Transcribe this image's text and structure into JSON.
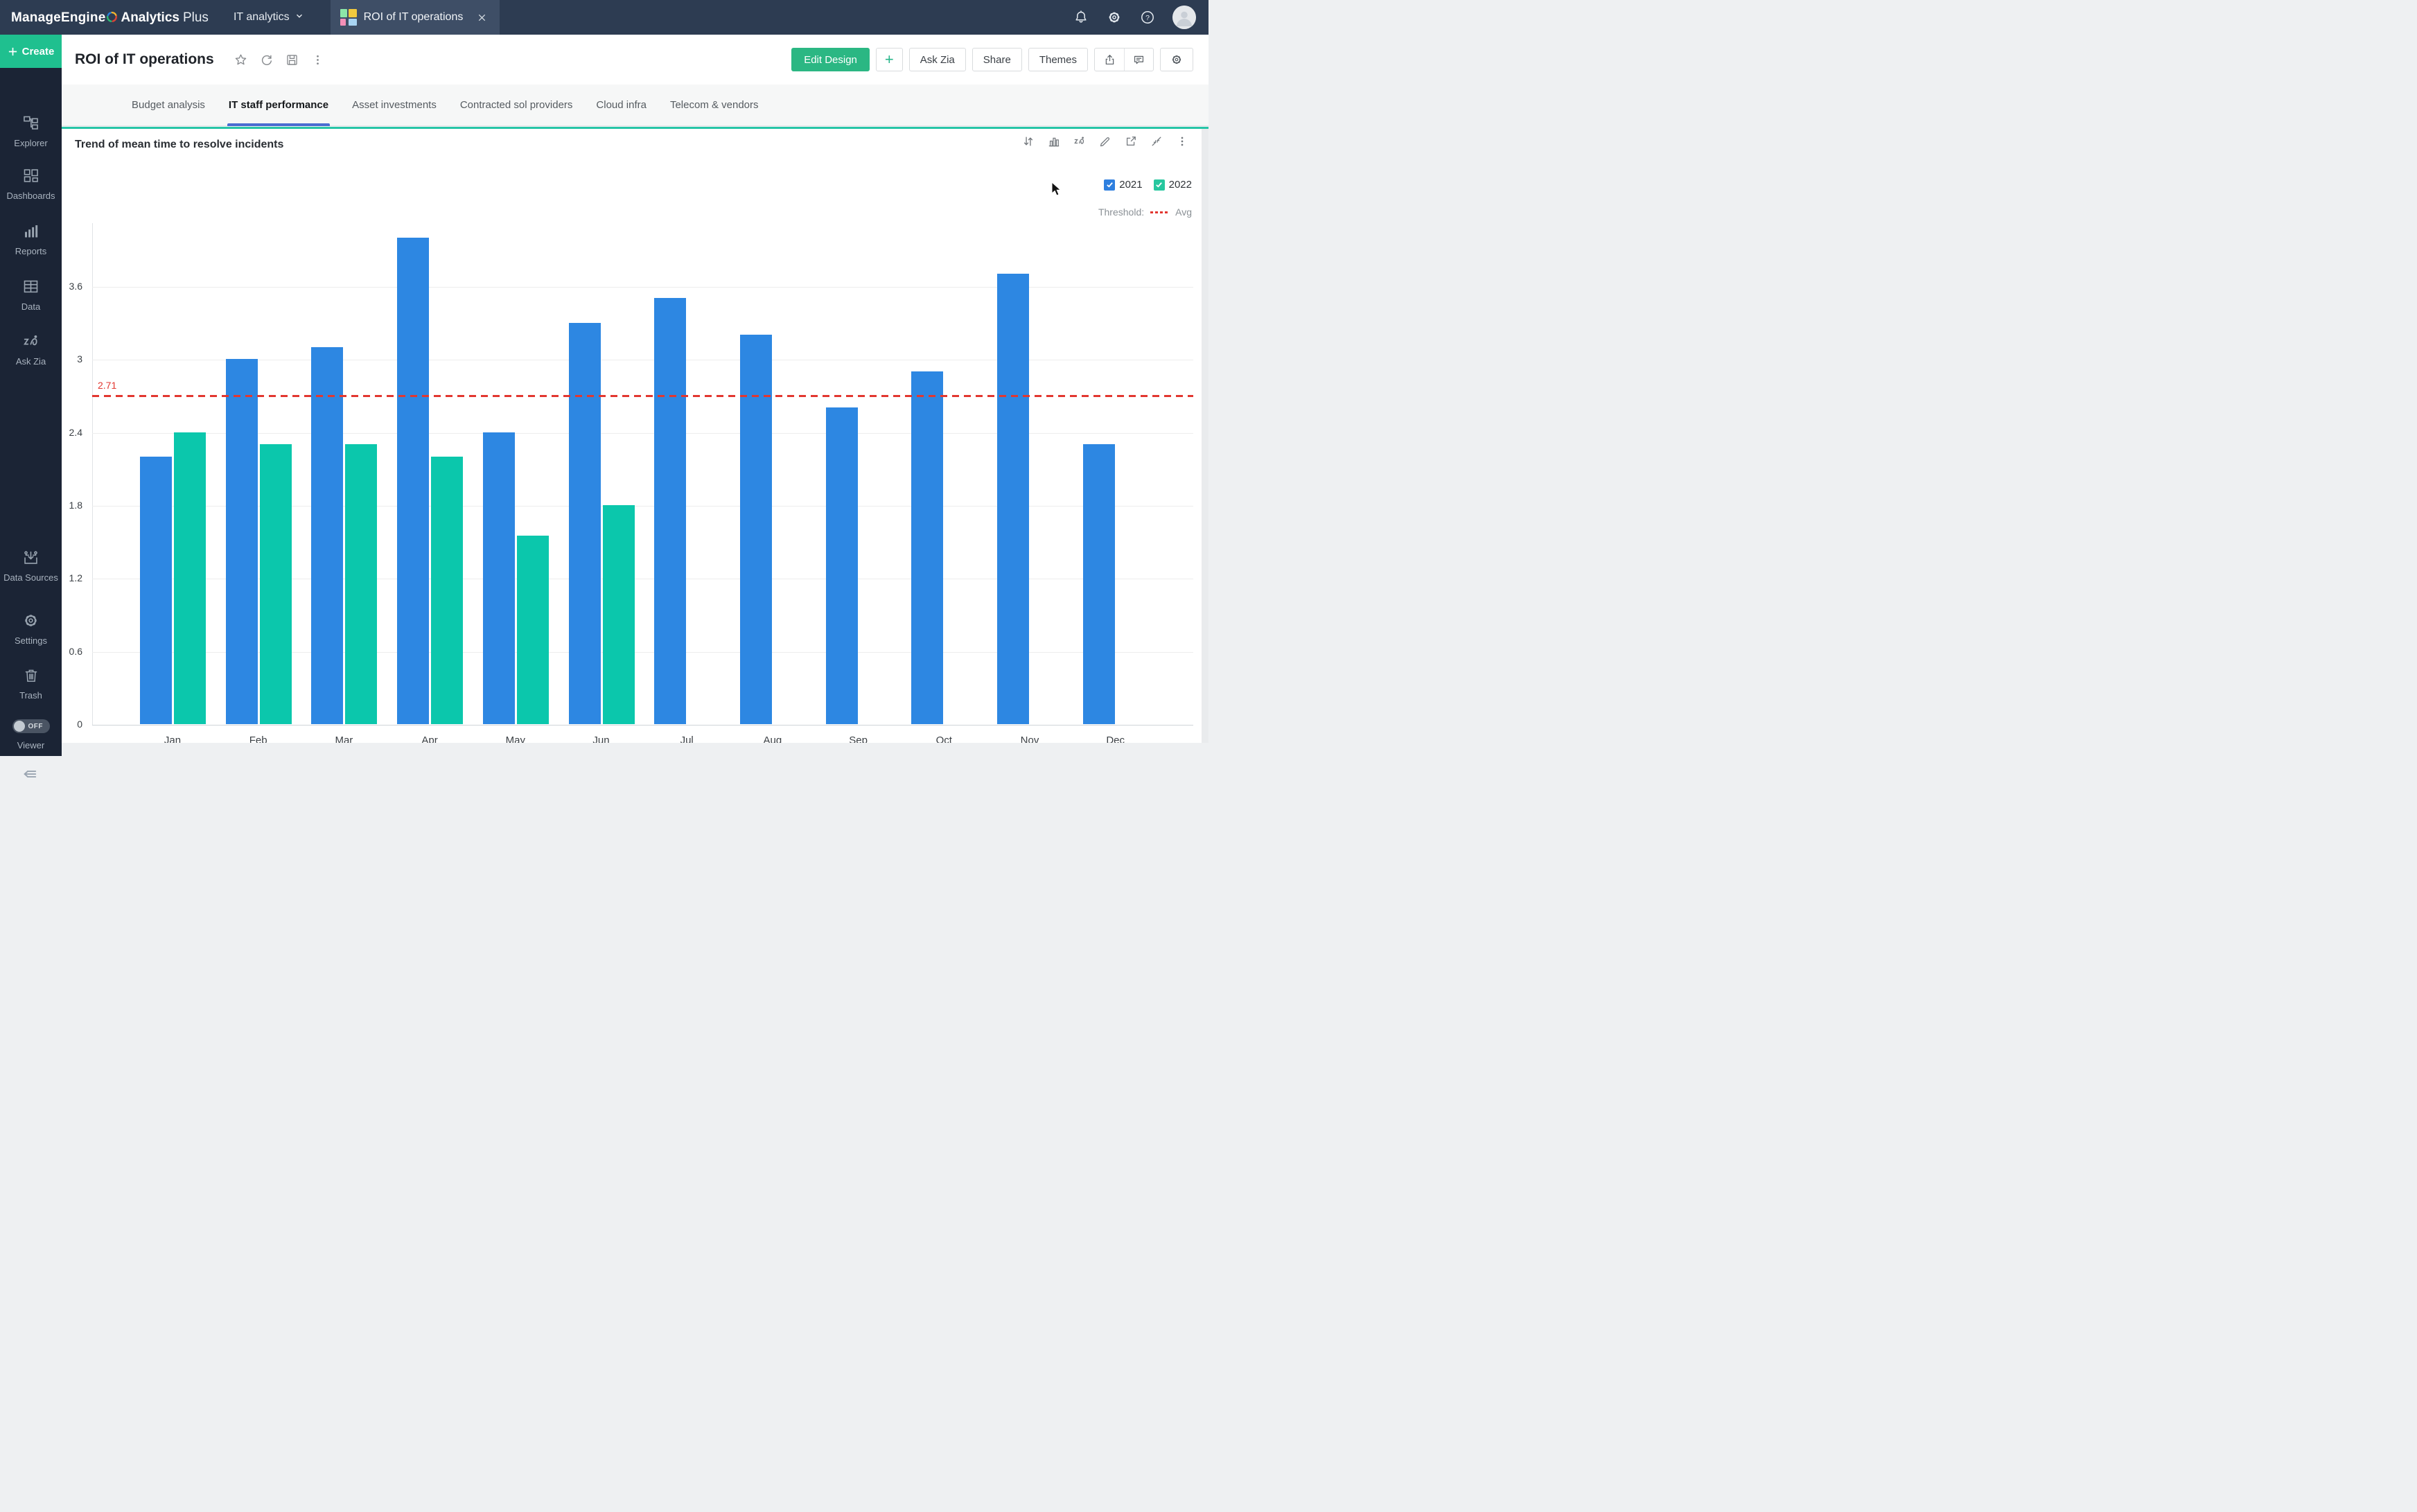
{
  "topbar": {
    "brand": {
      "manageengine": "ManageEngine",
      "analytics": "Analytics",
      "plus": "Plus"
    },
    "workspace_label": "IT analytics",
    "doc_tab_label": "ROI of IT operations"
  },
  "sidebar": {
    "create_label": "Create",
    "items": [
      "Explorer",
      "Dashboards",
      "Reports",
      "Data",
      "Ask Zia"
    ],
    "bottom_items": [
      "Data Sources",
      "Settings",
      "Trash"
    ],
    "viewer": {
      "toggle_state": "OFF",
      "label": "Viewer"
    }
  },
  "header": {
    "title": "ROI of IT operations",
    "buttons": {
      "edit_design": "Edit Design",
      "add": "+",
      "ask_zia": "Ask Zia",
      "share": "Share",
      "themes": "Themes"
    }
  },
  "tabs": {
    "items": [
      "Budget analysis",
      "IT staff performance",
      "Asset investments",
      "Contracted sol providers",
      "Cloud infra",
      "Telecom & vendors"
    ],
    "active": "IT staff performance"
  },
  "chart": {
    "title": "Trend of mean time to resolve incidents",
    "threshold_label": "Threshold:",
    "threshold_series_label": "Avg"
  },
  "chart_data": {
    "type": "bar",
    "title": "Trend of mean time to resolve incidents",
    "categories": [
      "Jan",
      "Feb",
      "Mar",
      "Apr",
      "May",
      "Jun",
      "Jul",
      "Aug",
      "Sep",
      "Oct",
      "Nov",
      "Dec"
    ],
    "series": [
      {
        "name": "2021",
        "color": "#2d87e2",
        "values": [
          2.2,
          3,
          3.1,
          4,
          2.4,
          3.3,
          3.5,
          3.2,
          2.6,
          2.9,
          3.7,
          2.3
        ]
      },
      {
        "name": "2022",
        "color": "#0bc7ac",
        "values": [
          2.4,
          2.3,
          2.3,
          2.2,
          1.55,
          1.8,
          null,
          null,
          null,
          null,
          null,
          null
        ]
      }
    ],
    "threshold": {
      "value": 2.71,
      "label": "2.71",
      "color": "#e23730",
      "style": "dashed"
    },
    "y_ticks": [
      0,
      0.6,
      1.2,
      1.8,
      2.4,
      3,
      3.6
    ],
    "ylim": [
      0,
      4.12
    ],
    "xlabel": "",
    "ylabel": "",
    "grid": true,
    "legend_position": "top-right",
    "legend_colors": {
      "2021": "#2e7fdf",
      "2022": "#27c79f"
    }
  }
}
